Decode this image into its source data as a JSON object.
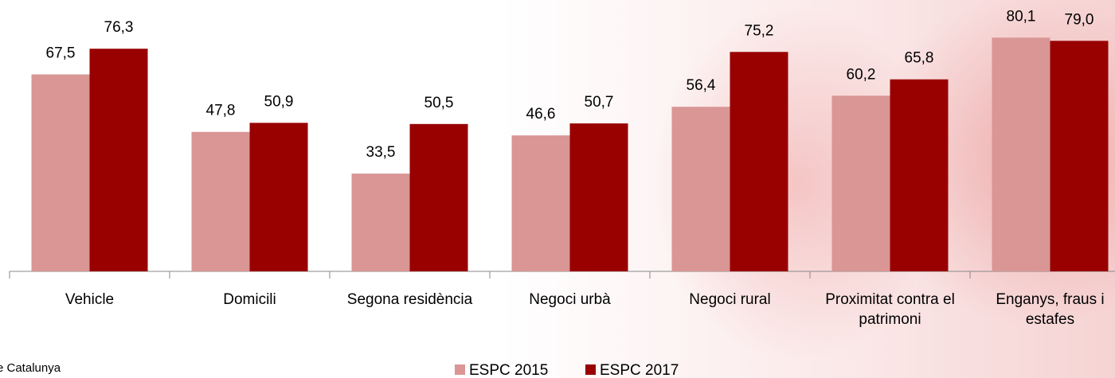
{
  "chart_data": {
    "type": "bar",
    "categories": [
      "Vehicle",
      "Domicili",
      "Segona residència",
      "Negoci urbà",
      "Negoci rural",
      "Proximitat contra el patrimoni",
      "Enganys, fraus i estafes"
    ],
    "series": [
      {
        "name": "ESPC 2015",
        "color": "#d99694",
        "values": [
          67.5,
          47.8,
          33.5,
          46.6,
          56.4,
          60.2,
          80.1
        ],
        "value_labels": [
          "67,5",
          "47,8",
          "33,5",
          "46,6",
          "56,4",
          "60,2",
          "80,1"
        ]
      },
      {
        "name": "ESPC 2017",
        "color": "#990000",
        "values": [
          76.3,
          50.9,
          50.5,
          50.7,
          75.2,
          65.8,
          79.0
        ],
        "value_labels": [
          "76,3",
          "50,9",
          "50,5",
          "50,7",
          "75,2",
          "65,8",
          "79,0"
        ]
      }
    ],
    "ylim": [
      0,
      93
    ],
    "legend": "bottom",
    "footer_text": "e Catalunya"
  }
}
